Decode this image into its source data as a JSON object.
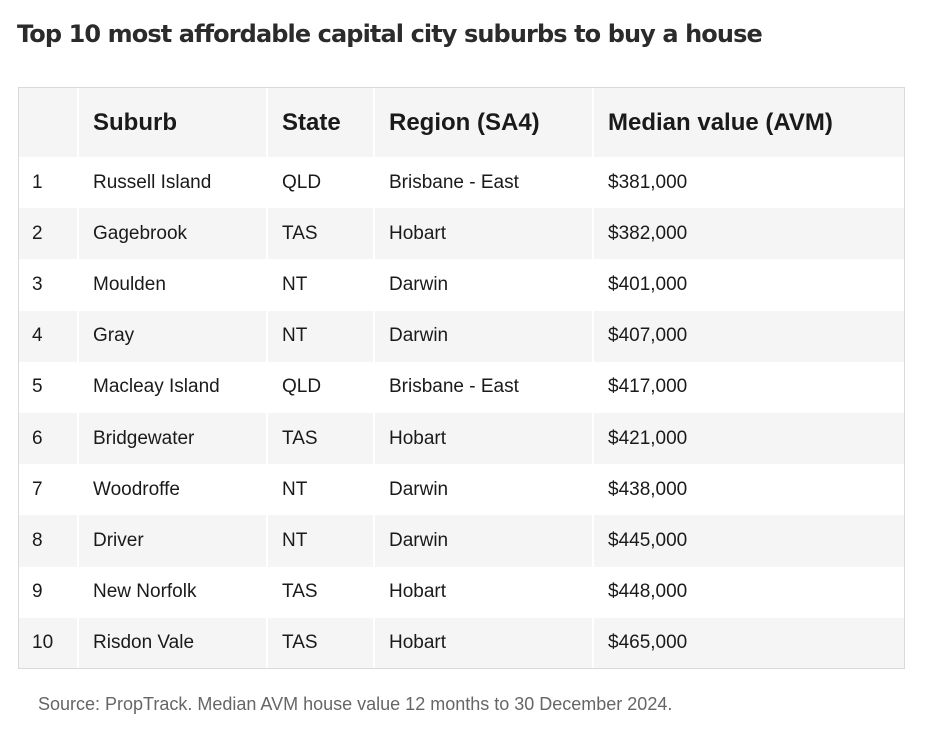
{
  "title": "Top 10 most affordable capital city suburbs to buy a house",
  "table": {
    "headers": [
      "",
      "Suburb",
      "State",
      "Region (SA4)",
      "Median value (AVM)"
    ],
    "rows": [
      [
        "1",
        "Russell Island",
        "QLD",
        "Brisbane - East",
        "$381,000"
      ],
      [
        "2",
        "Gagebrook",
        "TAS",
        "Hobart",
        "$382,000"
      ],
      [
        "3",
        "Moulden",
        "NT",
        "Darwin",
        "$401,000"
      ],
      [
        "4",
        "Gray",
        "NT",
        "Darwin",
        "$407,000"
      ],
      [
        "5",
        "Macleay Island",
        "QLD",
        "Brisbane - East",
        "$417,000"
      ],
      [
        "6",
        "Bridgewater",
        "TAS",
        "Hobart",
        "$421,000"
      ],
      [
        "7",
        "Woodroffe",
        "NT",
        "Darwin",
        "$438,000"
      ],
      [
        "8",
        "Driver",
        "NT",
        "Darwin",
        "$445,000"
      ],
      [
        "9",
        "New Norfolk",
        "TAS",
        "Hobart",
        "$448,000"
      ],
      [
        "10",
        "Risdon Vale",
        "TAS",
        "Hobart",
        "$465,000"
      ]
    ]
  },
  "source": "Source: PropTrack. Median AVM house value 12 months to 30 December 2024.",
  "colors": {
    "header_bg": "#f5f5f5",
    "stripe_bg": "#f5f5f5",
    "border": "#d9d9d9",
    "source_text": "#666666"
  }
}
